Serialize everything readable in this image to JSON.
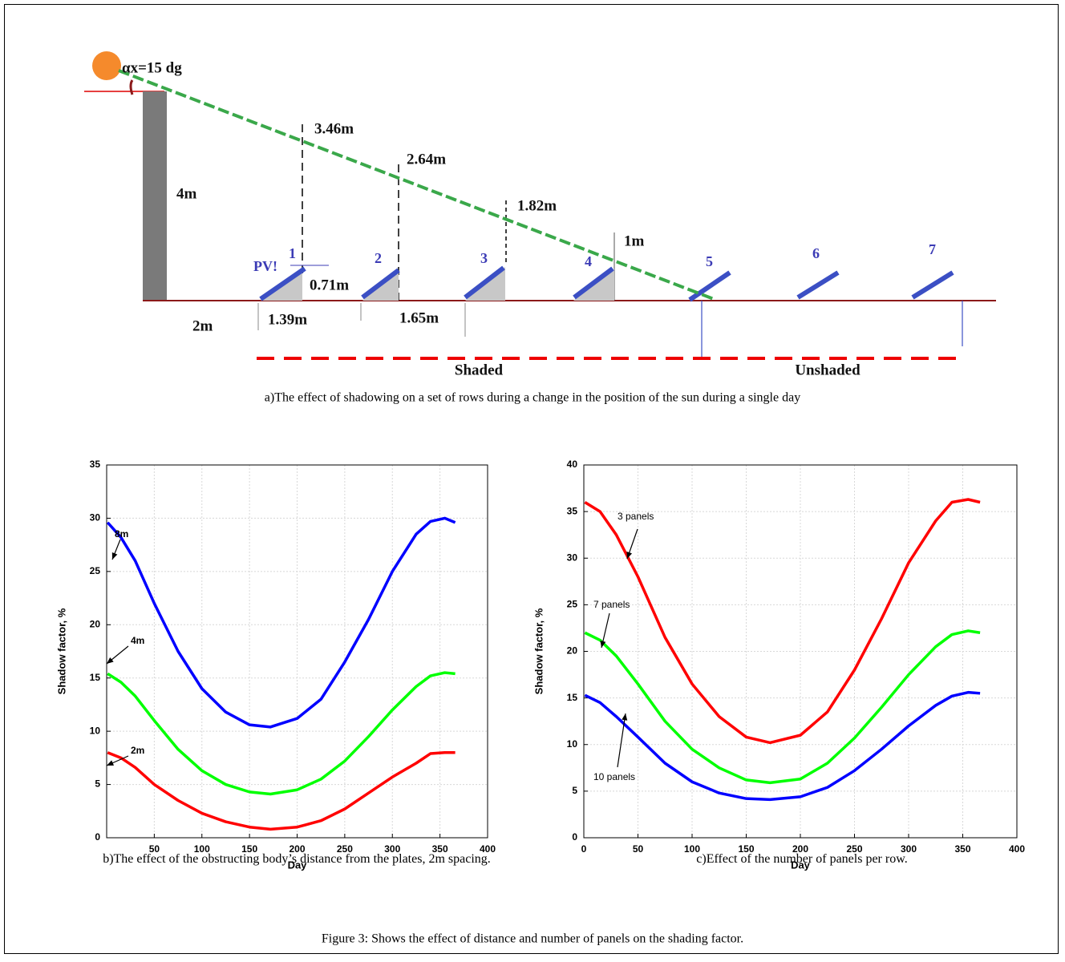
{
  "diagram": {
    "angle_label": "αx=15 dg",
    "height_label": "4m",
    "shadow_labels": [
      "3.46m",
      "2.64m",
      "1.82m",
      "1m"
    ],
    "pv_label": "PV!",
    "row_numbers": [
      "1",
      "2",
      "3",
      "4",
      "5",
      "6",
      "7"
    ],
    "panel_height_label": "0.71m",
    "distance_label": "2m",
    "row_width_label": "1.39m",
    "spacing_label": "1.65m",
    "shaded_label": "Shaded",
    "unshaded_label": "Unshaded",
    "caption": "a)The effect of shadowing on a set of rows during a change in the position of the sun during a single day"
  },
  "chart_data": [
    {
      "type": "line",
      "xlabel": "Day",
      "ylabel": "Shadow factor, %",
      "x": [
        1,
        15,
        30,
        50,
        75,
        100,
        125,
        150,
        172,
        200,
        225,
        250,
        275,
        300,
        325,
        340,
        355,
        366
      ],
      "series": [
        {
          "name": "8m",
          "color": "#0000ff",
          "values": [
            29.6,
            28.2,
            26,
            22,
            17.5,
            14,
            11.8,
            10.6,
            10.4,
            11.2,
            13,
            16.5,
            20.5,
            25,
            28.5,
            29.7,
            30,
            29.6
          ]
        },
        {
          "name": "4m",
          "color": "#00ff00",
          "values": [
            15.4,
            14.6,
            13.3,
            11,
            8.3,
            6.3,
            5,
            4.3,
            4.1,
            4.5,
            5.5,
            7.2,
            9.5,
            12,
            14.2,
            15.2,
            15.5,
            15.4
          ]
        },
        {
          "name": "2m",
          "color": "#ff0000",
          "values": [
            8,
            7.5,
            6.6,
            5,
            3.5,
            2.3,
            1.5,
            1,
            0.8,
            1,
            1.6,
            2.7,
            4.2,
            5.7,
            7,
            7.9,
            8,
            8
          ]
        }
      ],
      "xlim": [
        0,
        400
      ],
      "ylim": [
        0,
        35
      ],
      "xticks": [
        50,
        100,
        150,
        200,
        250,
        300,
        350,
        400
      ],
      "yticks": [
        0,
        5,
        10,
        15,
        20,
        25,
        30,
        35
      ],
      "grid": true,
      "caption": "b)The effect of the obstructing body’s distance from the plates, 2m spacing."
    },
    {
      "type": "line",
      "xlabel": "Day",
      "ylabel": "Shadow factor, %",
      "x": [
        1,
        15,
        30,
        50,
        75,
        100,
        125,
        150,
        172,
        200,
        225,
        250,
        275,
        300,
        325,
        340,
        355,
        366
      ],
      "series": [
        {
          "name": "3 panels",
          "color": "#ff0000",
          "values": [
            36,
            35,
            32.5,
            28,
            21.5,
            16.5,
            13,
            10.8,
            10.2,
            11,
            13.5,
            18,
            23.5,
            29.5,
            34,
            36,
            36.3,
            36
          ]
        },
        {
          "name": "7 panels",
          "color": "#00ff00",
          "values": [
            22,
            21.2,
            19.5,
            16.5,
            12.5,
            9.5,
            7.5,
            6.2,
            5.9,
            6.3,
            8,
            10.7,
            14,
            17.5,
            20.5,
            21.8,
            22.2,
            22
          ]
        },
        {
          "name": "10 panels",
          "color": "#0000ff",
          "values": [
            15.3,
            14.5,
            13,
            10.8,
            8,
            6,
            4.8,
            4.2,
            4.1,
            4.4,
            5.4,
            7.2,
            9.5,
            12,
            14.2,
            15.2,
            15.6,
            15.5
          ]
        }
      ],
      "xlim": [
        0,
        400
      ],
      "ylim": [
        0,
        40
      ],
      "xticks": [
        0,
        50,
        100,
        150,
        200,
        250,
        300,
        350,
        400
      ],
      "yticks": [
        0,
        5,
        10,
        15,
        20,
        25,
        30,
        35,
        40
      ],
      "grid": true,
      "caption": "c)Effect of the number of panels per row."
    }
  ],
  "caption": "Figure 3: Shows the effect of distance and number of panels on the shading factor."
}
